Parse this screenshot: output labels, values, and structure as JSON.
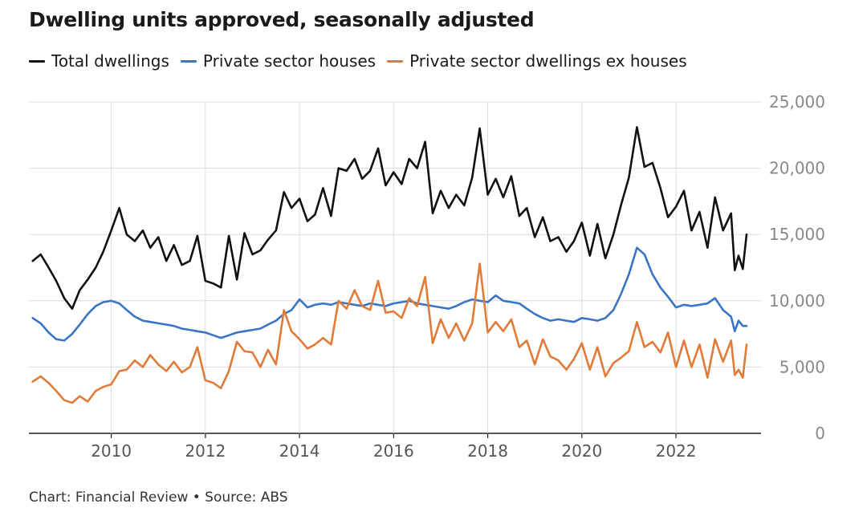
{
  "chart_data": {
    "type": "line",
    "title": "Dwelling units approved, seasonally adjusted",
    "source": "Chart: Financial Review • Source: ABS",
    "y_ticks": [
      "0",
      "5,000",
      "10,000",
      "15,000",
      "20,000",
      "25,000"
    ],
    "x_ticks": [
      "2010",
      "2012",
      "2014",
      "2016",
      "2018",
      "2020",
      "2022"
    ],
    "ylim": [
      0,
      25000
    ],
    "xlim": [
      2008.25,
      2023.5
    ],
    "grid": true,
    "legend_position": "top-left",
    "series": [
      {
        "name": "Total dwellings",
        "color": "#111111",
        "points": [
          [
            2008.33,
            13000
          ],
          [
            2008.5,
            13500
          ],
          [
            2008.67,
            12500
          ],
          [
            2008.83,
            11500
          ],
          [
            2009.0,
            10200
          ],
          [
            2009.17,
            9400
          ],
          [
            2009.33,
            10800
          ],
          [
            2009.5,
            11600
          ],
          [
            2009.67,
            12500
          ],
          [
            2009.83,
            13700
          ],
          [
            2010.0,
            15300
          ],
          [
            2010.17,
            17000
          ],
          [
            2010.33,
            15000
          ],
          [
            2010.5,
            14500
          ],
          [
            2010.67,
            15300
          ],
          [
            2010.83,
            14000
          ],
          [
            2011.0,
            14800
          ],
          [
            2011.17,
            13000
          ],
          [
            2011.33,
            14200
          ],
          [
            2011.5,
            12700
          ],
          [
            2011.67,
            13000
          ],
          [
            2011.83,
            14900
          ],
          [
            2012.0,
            11500
          ],
          [
            2012.17,
            11300
          ],
          [
            2012.33,
            11000
          ],
          [
            2012.5,
            14900
          ],
          [
            2012.67,
            11600
          ],
          [
            2012.83,
            15100
          ],
          [
            2013.0,
            13500
          ],
          [
            2013.17,
            13800
          ],
          [
            2013.33,
            14600
          ],
          [
            2013.5,
            15300
          ],
          [
            2013.67,
            18200
          ],
          [
            2013.83,
            17000
          ],
          [
            2014.0,
            17700
          ],
          [
            2014.17,
            16000
          ],
          [
            2014.33,
            16500
          ],
          [
            2014.5,
            18500
          ],
          [
            2014.67,
            16400
          ],
          [
            2014.83,
            20000
          ],
          [
            2015.0,
            19800
          ],
          [
            2015.17,
            20700
          ],
          [
            2015.33,
            19200
          ],
          [
            2015.5,
            19800
          ],
          [
            2015.67,
            21500
          ],
          [
            2015.83,
            18700
          ],
          [
            2016.0,
            19700
          ],
          [
            2016.17,
            18800
          ],
          [
            2016.33,
            20700
          ],
          [
            2016.5,
            20000
          ],
          [
            2016.67,
            22000
          ],
          [
            2016.83,
            16600
          ],
          [
            2017.0,
            18300
          ],
          [
            2017.17,
            17000
          ],
          [
            2017.33,
            18000
          ],
          [
            2017.5,
            17200
          ],
          [
            2017.67,
            19300
          ],
          [
            2017.83,
            23000
          ],
          [
            2018.0,
            18000
          ],
          [
            2018.17,
            19200
          ],
          [
            2018.33,
            17800
          ],
          [
            2018.5,
            19400
          ],
          [
            2018.67,
            16400
          ],
          [
            2018.83,
            17000
          ],
          [
            2019.0,
            14800
          ],
          [
            2019.17,
            16300
          ],
          [
            2019.33,
            14500
          ],
          [
            2019.5,
            14800
          ],
          [
            2019.67,
            13700
          ],
          [
            2019.83,
            14500
          ],
          [
            2020.0,
            15900
          ],
          [
            2020.17,
            13400
          ],
          [
            2020.33,
            15800
          ],
          [
            2020.5,
            13200
          ],
          [
            2020.67,
            15000
          ],
          [
            2020.83,
            17200
          ],
          [
            2021.0,
            19300
          ],
          [
            2021.17,
            23100
          ],
          [
            2021.33,
            20100
          ],
          [
            2021.5,
            20400
          ],
          [
            2021.67,
            18500
          ],
          [
            2021.83,
            16300
          ],
          [
            2022.0,
            17100
          ],
          [
            2022.17,
            18300
          ],
          [
            2022.33,
            15300
          ],
          [
            2022.5,
            16700
          ],
          [
            2022.67,
            14000
          ],
          [
            2022.83,
            17800
          ],
          [
            2023.0,
            15300
          ],
          [
            2023.17,
            16600
          ],
          [
            2023.25,
            12300
          ],
          [
            2023.33,
            13400
          ],
          [
            2023.42,
            12400
          ],
          [
            2023.5,
            15000
          ]
        ]
      },
      {
        "name": "Private sector houses",
        "color": "#3a74c4",
        "points": [
          [
            2008.33,
            8700
          ],
          [
            2008.5,
            8300
          ],
          [
            2008.67,
            7600
          ],
          [
            2008.83,
            7100
          ],
          [
            2009.0,
            7000
          ],
          [
            2009.17,
            7500
          ],
          [
            2009.33,
            8200
          ],
          [
            2009.5,
            9000
          ],
          [
            2009.67,
            9600
          ],
          [
            2009.83,
            9900
          ],
          [
            2010.0,
            10000
          ],
          [
            2010.17,
            9800
          ],
          [
            2010.33,
            9300
          ],
          [
            2010.5,
            8800
          ],
          [
            2010.67,
            8500
          ],
          [
            2010.83,
            8400
          ],
          [
            2011.0,
            8300
          ],
          [
            2011.17,
            8200
          ],
          [
            2011.33,
            8100
          ],
          [
            2011.5,
            7900
          ],
          [
            2011.67,
            7800
          ],
          [
            2011.83,
            7700
          ],
          [
            2012.0,
            7600
          ],
          [
            2012.17,
            7400
          ],
          [
            2012.33,
            7200
          ],
          [
            2012.5,
            7400
          ],
          [
            2012.67,
            7600
          ],
          [
            2012.83,
            7700
          ],
          [
            2013.0,
            7800
          ],
          [
            2013.17,
            7900
          ],
          [
            2013.33,
            8200
          ],
          [
            2013.5,
            8500
          ],
          [
            2013.67,
            9000
          ],
          [
            2013.83,
            9300
          ],
          [
            2014.0,
            10100
          ],
          [
            2014.17,
            9500
          ],
          [
            2014.33,
            9700
          ],
          [
            2014.5,
            9800
          ],
          [
            2014.67,
            9700
          ],
          [
            2014.83,
            9900
          ],
          [
            2015.0,
            9800
          ],
          [
            2015.17,
            9700
          ],
          [
            2015.33,
            9600
          ],
          [
            2015.5,
            9800
          ],
          [
            2015.67,
            9700
          ],
          [
            2015.83,
            9600
          ],
          [
            2016.0,
            9800
          ],
          [
            2016.17,
            9900
          ],
          [
            2016.33,
            10000
          ],
          [
            2016.5,
            9800
          ],
          [
            2016.67,
            9700
          ],
          [
            2016.83,
            9600
          ],
          [
            2017.0,
            9500
          ],
          [
            2017.17,
            9400
          ],
          [
            2017.33,
            9600
          ],
          [
            2017.5,
            9900
          ],
          [
            2017.67,
            10100
          ],
          [
            2017.83,
            10000
          ],
          [
            2018.0,
            9900
          ],
          [
            2018.17,
            10400
          ],
          [
            2018.33,
            10000
          ],
          [
            2018.5,
            9900
          ],
          [
            2018.67,
            9800
          ],
          [
            2018.83,
            9400
          ],
          [
            2019.0,
            9000
          ],
          [
            2019.17,
            8700
          ],
          [
            2019.33,
            8500
          ],
          [
            2019.5,
            8600
          ],
          [
            2019.67,
            8500
          ],
          [
            2019.83,
            8400
          ],
          [
            2020.0,
            8700
          ],
          [
            2020.17,
            8600
          ],
          [
            2020.33,
            8500
          ],
          [
            2020.5,
            8700
          ],
          [
            2020.67,
            9300
          ],
          [
            2020.83,
            10500
          ],
          [
            2021.0,
            12000
          ],
          [
            2021.17,
            14000
          ],
          [
            2021.33,
            13500
          ],
          [
            2021.5,
            12000
          ],
          [
            2021.67,
            11000
          ],
          [
            2021.83,
            10300
          ],
          [
            2022.0,
            9500
          ],
          [
            2022.17,
            9700
          ],
          [
            2022.33,
            9600
          ],
          [
            2022.5,
            9700
          ],
          [
            2022.67,
            9800
          ],
          [
            2022.83,
            10200
          ],
          [
            2023.0,
            9300
          ],
          [
            2023.17,
            8800
          ],
          [
            2023.25,
            7700
          ],
          [
            2023.33,
            8500
          ],
          [
            2023.42,
            8100
          ],
          [
            2023.5,
            8100
          ]
        ]
      },
      {
        "name": "Private sector dwellings ex houses",
        "color": "#e07b39",
        "points": [
          [
            2008.33,
            3900
          ],
          [
            2008.5,
            4300
          ],
          [
            2008.67,
            3800
          ],
          [
            2008.83,
            3200
          ],
          [
            2009.0,
            2500
          ],
          [
            2009.17,
            2300
          ],
          [
            2009.33,
            2800
          ],
          [
            2009.5,
            2400
          ],
          [
            2009.67,
            3200
          ],
          [
            2009.83,
            3500
          ],
          [
            2010.0,
            3700
          ],
          [
            2010.17,
            4700
          ],
          [
            2010.33,
            4800
          ],
          [
            2010.5,
            5500
          ],
          [
            2010.67,
            5000
          ],
          [
            2010.83,
            5900
          ],
          [
            2011.0,
            5200
          ],
          [
            2011.17,
            4700
          ],
          [
            2011.33,
            5400
          ],
          [
            2011.5,
            4600
          ],
          [
            2011.67,
            5000
          ],
          [
            2011.83,
            6500
          ],
          [
            2012.0,
            4000
          ],
          [
            2012.17,
            3800
          ],
          [
            2012.33,
            3400
          ],
          [
            2012.5,
            4700
          ],
          [
            2012.67,
            6900
          ],
          [
            2012.83,
            6200
          ],
          [
            2013.0,
            6100
          ],
          [
            2013.17,
            5000
          ],
          [
            2013.33,
            6300
          ],
          [
            2013.5,
            5200
          ],
          [
            2013.67,
            9300
          ],
          [
            2013.83,
            7700
          ],
          [
            2014.0,
            7100
          ],
          [
            2014.17,
            6400
          ],
          [
            2014.33,
            6700
          ],
          [
            2014.5,
            7200
          ],
          [
            2014.67,
            6700
          ],
          [
            2014.83,
            10000
          ],
          [
            2015.0,
            9400
          ],
          [
            2015.17,
            10800
          ],
          [
            2015.33,
            9600
          ],
          [
            2015.5,
            9300
          ],
          [
            2015.67,
            11500
          ],
          [
            2015.83,
            9100
          ],
          [
            2016.0,
            9200
          ],
          [
            2016.17,
            8700
          ],
          [
            2016.33,
            10200
          ],
          [
            2016.5,
            9600
          ],
          [
            2016.67,
            11800
          ],
          [
            2016.83,
            6800
          ],
          [
            2017.0,
            8600
          ],
          [
            2017.17,
            7200
          ],
          [
            2017.33,
            8300
          ],
          [
            2017.5,
            7000
          ],
          [
            2017.67,
            8300
          ],
          [
            2017.83,
            12800
          ],
          [
            2018.0,
            7600
          ],
          [
            2018.17,
            8400
          ],
          [
            2018.33,
            7700
          ],
          [
            2018.5,
            8600
          ],
          [
            2018.67,
            6500
          ],
          [
            2018.83,
            7000
          ],
          [
            2019.0,
            5200
          ],
          [
            2019.17,
            7100
          ],
          [
            2019.33,
            5800
          ],
          [
            2019.5,
            5500
          ],
          [
            2019.67,
            4800
          ],
          [
            2019.83,
            5600
          ],
          [
            2020.0,
            6800
          ],
          [
            2020.17,
            4800
          ],
          [
            2020.33,
            6500
          ],
          [
            2020.5,
            4300
          ],
          [
            2020.67,
            5300
          ],
          [
            2020.83,
            5700
          ],
          [
            2021.0,
            6200
          ],
          [
            2021.17,
            8400
          ],
          [
            2021.33,
            6500
          ],
          [
            2021.5,
            6900
          ],
          [
            2021.67,
            6100
          ],
          [
            2021.83,
            7600
          ],
          [
            2022.0,
            5000
          ],
          [
            2022.17,
            7000
          ],
          [
            2022.33,
            5000
          ],
          [
            2022.5,
            6700
          ],
          [
            2022.67,
            4200
          ],
          [
            2022.83,
            7100
          ],
          [
            2023.0,
            5400
          ],
          [
            2023.17,
            7000
          ],
          [
            2023.25,
            4400
          ],
          [
            2023.33,
            4800
          ],
          [
            2023.42,
            4200
          ],
          [
            2023.5,
            6700
          ]
        ]
      }
    ]
  }
}
